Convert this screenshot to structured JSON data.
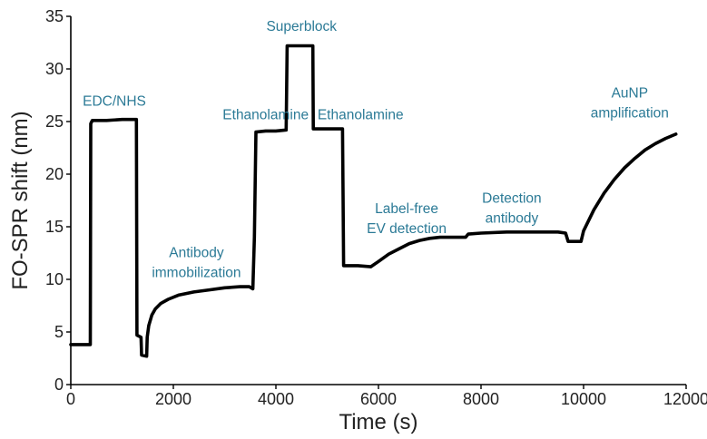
{
  "chart_data": {
    "type": "line",
    "title": "",
    "xlabel": "Time (s)",
    "ylabel": "FO-SPR shift (nm)",
    "xlim": [
      0,
      12000
    ],
    "ylim": [
      0,
      35
    ],
    "xticks": [
      0,
      2000,
      4000,
      6000,
      8000,
      10000,
      12000
    ],
    "yticks": [
      0,
      5,
      10,
      15,
      20,
      25,
      30,
      35
    ],
    "grid": false,
    "legend": "none",
    "series": [
      {
        "color": "#000000",
        "points": [
          [
            0,
            3.8
          ],
          [
            380,
            3.8
          ],
          [
            390,
            24.8
          ],
          [
            420,
            25.1
          ],
          [
            700,
            25.1
          ],
          [
            1000,
            25.2
          ],
          [
            1280,
            25.2
          ],
          [
            1290,
            4.7
          ],
          [
            1370,
            4.5
          ],
          [
            1380,
            2.8
          ],
          [
            1480,
            2.7
          ],
          [
            1490,
            4.5
          ],
          [
            1520,
            5.6
          ],
          [
            1580,
            6.6
          ],
          [
            1650,
            7.2
          ],
          [
            1750,
            7.7
          ],
          [
            1900,
            8.1
          ],
          [
            2100,
            8.5
          ],
          [
            2400,
            8.8
          ],
          [
            2700,
            9.0
          ],
          [
            3000,
            9.2
          ],
          [
            3300,
            9.3
          ],
          [
            3480,
            9.3
          ],
          [
            3550,
            9.1
          ],
          [
            3580,
            14.0
          ],
          [
            3610,
            24.0
          ],
          [
            3800,
            24.1
          ],
          [
            4000,
            24.1
          ],
          [
            4200,
            24.2
          ],
          [
            4220,
            32.2
          ],
          [
            4500,
            32.2
          ],
          [
            4720,
            32.2
          ],
          [
            4730,
            24.3
          ],
          [
            5000,
            24.3
          ],
          [
            5300,
            24.3
          ],
          [
            5310,
            18.0
          ],
          [
            5320,
            11.3
          ],
          [
            5600,
            11.3
          ],
          [
            5850,
            11.2
          ],
          [
            6000,
            11.7
          ],
          [
            6200,
            12.4
          ],
          [
            6400,
            12.9
          ],
          [
            6600,
            13.4
          ],
          [
            6800,
            13.7
          ],
          [
            7000,
            13.9
          ],
          [
            7200,
            14.0
          ],
          [
            7500,
            14.0
          ],
          [
            7700,
            14.0
          ],
          [
            7750,
            14.3
          ],
          [
            8000,
            14.4
          ],
          [
            8500,
            14.5
          ],
          [
            9000,
            14.5
          ],
          [
            9500,
            14.5
          ],
          [
            9650,
            14.4
          ],
          [
            9700,
            13.6
          ],
          [
            9950,
            13.6
          ],
          [
            10000,
            14.6
          ],
          [
            10200,
            16.6
          ],
          [
            10400,
            18.2
          ],
          [
            10600,
            19.5
          ],
          [
            10800,
            20.6
          ],
          [
            11000,
            21.5
          ],
          [
            11200,
            22.3
          ],
          [
            11400,
            22.9
          ],
          [
            11600,
            23.4
          ],
          [
            11800,
            23.8
          ]
        ]
      }
    ],
    "annotations": [
      {
        "text": "EDC/NHS",
        "x": 850,
        "y": 26.5
      },
      {
        "text": "Superblock",
        "x": 4500,
        "y": 33.6
      },
      {
        "text": "Ethanolamine",
        "x": 3800,
        "y": 25.2
      },
      {
        "text": "Ethanolamine",
        "x": 5650,
        "y": 25.2
      },
      {
        "text": "Antibody",
        "x": 2450,
        "y": 12.1
      },
      {
        "text": "immobilization",
        "x": 2450,
        "y": 10.2
      },
      {
        "text": "Label-free",
        "x": 6550,
        "y": 16.3
      },
      {
        "text": "EV detection",
        "x": 6550,
        "y": 14.4
      },
      {
        "text": "Detection",
        "x": 8600,
        "y": 17.3
      },
      {
        "text": "antibody",
        "x": 8600,
        "y": 15.4
      },
      {
        "text": "AuNP",
        "x": 10900,
        "y": 27.3
      },
      {
        "text": "amplification",
        "x": 10900,
        "y": 25.4
      }
    ]
  }
}
